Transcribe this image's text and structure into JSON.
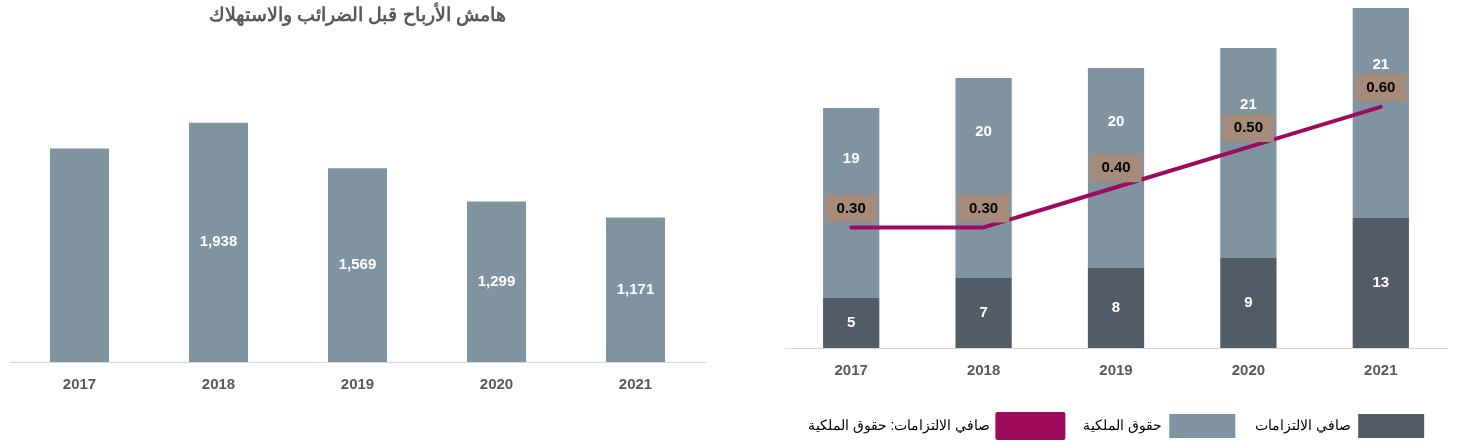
{
  "chart_data": [
    {
      "type": "bar",
      "title": "هامش الأرباح قبل الضرائب والاستهلاك",
      "categories": [
        "2017",
        "2018",
        "2019",
        "2020",
        "2021"
      ],
      "values": [
        1730,
        1938,
        1569,
        1299,
        1171
      ],
      "color": "#7f93a0",
      "value_labels": [
        null,
        "1,938",
        "1,569",
        "1,299",
        "1,171"
      ],
      "tick_labels": "x",
      "grid": false,
      "legend": false
    },
    {
      "type": "bar",
      "categories": [
        "2017",
        "2018",
        "2019",
        "2020",
        "2021"
      ],
      "stacked": true,
      "tick_labels": "x",
      "grid": false,
      "legend": "bottom",
      "series": [
        {
          "name": "صافي الالتزامات",
          "color": "#525c67",
          "values": [
            5,
            7,
            8,
            9,
            13
          ],
          "value_labels": [
            "5",
            "7",
            "8",
            "9",
            "13"
          ]
        },
        {
          "name": "حقوق الملكية",
          "color": "#7f93a0",
          "values": [
            19,
            20,
            20,
            21,
            21
          ],
          "value_labels": [
            "19",
            "20",
            "20",
            "21",
            "21"
          ]
        },
        {
          "name": "صافي الالتزامات: حقوق الملكية",
          "type": "line",
          "axis": "y2",
          "color": "#9e0a5c",
          "line_style": "solid",
          "values": [
            0.3,
            0.3,
            0.4,
            0.5,
            0.6
          ],
          "value_labels": [
            "0.30",
            "0.30",
            "0.40",
            "0.50",
            "0.60"
          ]
        }
      ]
    }
  ]
}
